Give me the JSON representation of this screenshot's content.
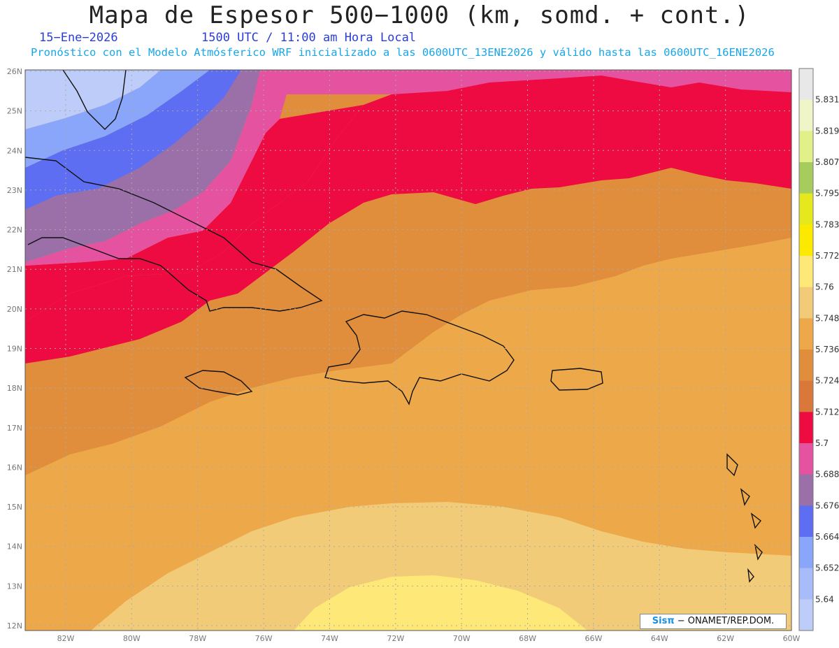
{
  "header": {
    "title": "Mapa de Espesor 500−1000 (km, somd. + cont.)",
    "date": "15−Ene−2026",
    "time": "1500 UTC / 11:00 am Hora Local",
    "forecast": "Pronóstico con el Modelo Atmósferico WRF inicializado a las 0600UTC_13ENE2026 y válido hasta las  0600UTC_16ENE2026"
  },
  "map": {
    "lon_labels": [
      "82W",
      "80W",
      "78W",
      "76W",
      "74W",
      "72W",
      "70W",
      "68W",
      "66W",
      "64W",
      "62W",
      "60W"
    ],
    "lat_labels": [
      "26N",
      "25N",
      "24N",
      "23N",
      "22N",
      "21N",
      "20N",
      "19N",
      "18N",
      "17N",
      "16N",
      "15N",
      "14N",
      "13N",
      "12N"
    ],
    "grid": true
  },
  "colorbar": {
    "levels": [
      "5.831",
      "5.819",
      "5.807",
      "5.795",
      "5.783",
      "5.772",
      "5.76",
      "5.748",
      "5.736",
      "5.724",
      "5.712",
      "5.7",
      "5.688",
      "5.676",
      "5.664",
      "5.652",
      "5.64"
    ],
    "colors": [
      "#e8e8e8",
      "#f0f5c8",
      "#e2f08a",
      "#a6cc5e",
      "#e4e81c",
      "#fbea00",
      "#fde878",
      "#f2cb78",
      "#eda84a",
      "#e08d3c",
      "#d9783a",
      "#ee0b42",
      "#e553a0",
      "#9b6fa8",
      "#5d6ef2",
      "#8aa6fb",
      "#a7bcf9",
      "#bdccf8"
    ]
  },
  "credit": {
    "brand": "Sisπ",
    "text": "− ONAMET/REP.DOM."
  }
}
